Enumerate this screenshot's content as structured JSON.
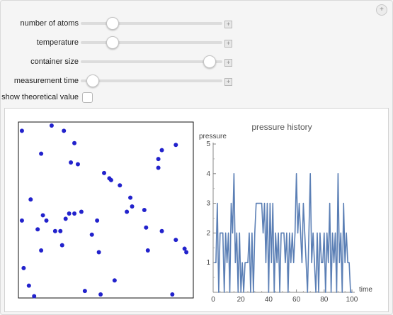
{
  "controls": {
    "sliders": [
      {
        "id": "atoms",
        "label": "number of atoms",
        "value_fraction": 0.2
      },
      {
        "id": "temperature",
        "label": "temperature",
        "value_fraction": 0.2
      },
      {
        "id": "container",
        "label": "container size",
        "value_fraction": 0.945
      },
      {
        "id": "measurement",
        "label": "measurement time",
        "value_fraction": 0.05
      }
    ],
    "checkbox": {
      "label": "show theoretical value",
      "checked": false
    }
  },
  "atoms": {
    "color": "#2222cc",
    "positions": [
      [
        0.02,
        0.95
      ],
      [
        0.19,
        0.98
      ],
      [
        0.26,
        0.95
      ],
      [
        0.32,
        0.88
      ],
      [
        0.13,
        0.82
      ],
      [
        0.34,
        0.76
      ],
      [
        0.82,
        0.84
      ],
      [
        0.8,
        0.79
      ],
      [
        0.8,
        0.74
      ],
      [
        0.9,
        0.87
      ],
      [
        0.3,
        0.77
      ],
      [
        0.49,
        0.71
      ],
      [
        0.52,
        0.68
      ],
      [
        0.53,
        0.67
      ],
      [
        0.58,
        0.64
      ],
      [
        0.64,
        0.57
      ],
      [
        0.65,
        0.52
      ],
      [
        0.72,
        0.5
      ],
      [
        0.07,
        0.56
      ],
      [
        0.02,
        0.44
      ],
      [
        0.14,
        0.47
      ],
      [
        0.16,
        0.44
      ],
      [
        0.11,
        0.39
      ],
      [
        0.21,
        0.38
      ],
      [
        0.24,
        0.38
      ],
      [
        0.27,
        0.45
      ],
      [
        0.29,
        0.48
      ],
      [
        0.32,
        0.48
      ],
      [
        0.36,
        0.49
      ],
      [
        0.42,
        0.36
      ],
      [
        0.45,
        0.44
      ],
      [
        0.62,
        0.49
      ],
      [
        0.73,
        0.4
      ],
      [
        0.82,
        0.38
      ],
      [
        0.9,
        0.33
      ],
      [
        0.95,
        0.28
      ],
      [
        0.96,
        0.26
      ],
      [
        0.74,
        0.27
      ],
      [
        0.46,
        0.26
      ],
      [
        0.13,
        0.27
      ],
      [
        0.25,
        0.3
      ],
      [
        0.03,
        0.17
      ],
      [
        0.06,
        0.07
      ],
      [
        0.47,
        0.02
      ],
      [
        0.09,
        0.01
      ],
      [
        0.38,
        0.04
      ],
      [
        0.88,
        0.02
      ],
      [
        0.55,
        0.1
      ]
    ]
  },
  "chart_data": {
    "type": "line",
    "title": "pressure history",
    "xlabel": "time",
    "ylabel": "pressure",
    "xlim": [
      0,
      100
    ],
    "ylim": [
      0,
      5
    ],
    "xticks": [
      0,
      20,
      40,
      60,
      80,
      100
    ],
    "yticks": [
      1,
      2,
      3,
      4,
      5
    ],
    "series": [
      {
        "color": "#5b7fb5",
        "x": [
          1,
          2,
          3,
          4,
          5,
          6,
          7,
          8,
          9,
          10,
          11,
          12,
          13,
          14,
          15,
          16,
          17,
          18,
          19,
          20,
          21,
          22,
          23,
          24,
          25,
          26,
          27,
          28,
          29,
          30,
          31,
          32,
          33,
          34,
          35,
          36,
          37,
          38,
          39,
          40,
          41,
          42,
          43,
          44,
          45,
          46,
          47,
          48,
          49,
          50,
          51,
          52,
          53,
          54,
          55,
          56,
          57,
          58,
          59,
          60,
          61,
          62,
          63,
          64,
          65,
          66,
          67,
          68,
          69,
          70,
          71,
          72,
          73,
          74,
          75,
          76,
          77,
          78,
          79,
          80,
          81,
          82,
          83,
          84,
          85,
          86,
          87,
          88,
          89,
          90,
          91,
          92,
          93,
          94,
          95,
          96,
          97,
          98,
          99,
          100
        ],
        "y": [
          1,
          1,
          3,
          0,
          2,
          2,
          2,
          0,
          2,
          1,
          2,
          0,
          3,
          2,
          4,
          1,
          2,
          0,
          2,
          0,
          1,
          0,
          1,
          1,
          1,
          2,
          0,
          2,
          0,
          2,
          3,
          3,
          3,
          3,
          3,
          2,
          3,
          1,
          3,
          0,
          3,
          1,
          3,
          0,
          2,
          1,
          2,
          0,
          2,
          2,
          2,
          1,
          2,
          0,
          2,
          1,
          2,
          1,
          2,
          4,
          2,
          3,
          2,
          1,
          3,
          2,
          1,
          0,
          2,
          4,
          1,
          2,
          1,
          0,
          2,
          0,
          2,
          1,
          1,
          2,
          0,
          2,
          1,
          3,
          0,
          2,
          1,
          2,
          0,
          4,
          1,
          2,
          0,
          3,
          1,
          2,
          1,
          1,
          0,
          0
        ]
      }
    ]
  }
}
